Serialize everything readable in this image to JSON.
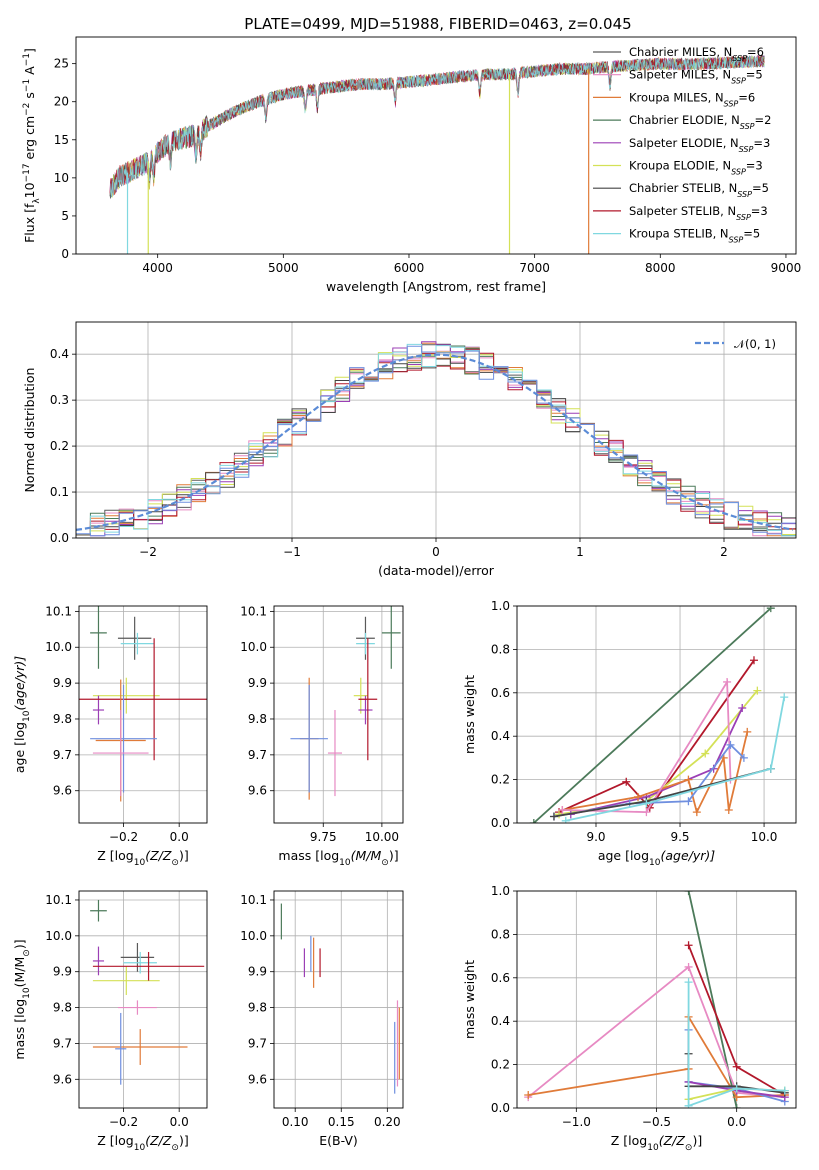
{
  "figure": {
    "title": "PLATE=0499, MJD=51988, FIBERID=0463, z=0.045"
  },
  "chart_data": [
    {
      "id": "spectrum",
      "type": "line",
      "xlabel": "wavelength [Angstrom, rest frame]",
      "ylabel": "Flux [f",
      "ylabel_sub": "λ",
      "ylabel_rest": "10",
      "ylabel_sup1": "−17",
      "ylabel_tail": " erg cm",
      "ylabel_sup2": "−2",
      "ylabel_s": " s",
      "ylabel_sup3": "−1",
      "ylabel_A": " A",
      "ylabel_sup4": "−1",
      "ylabel_end": "]",
      "xlim": [
        3350,
        9080
      ],
      "ylim": [
        0,
        28.5
      ],
      "xticks": [
        "4000",
        "5000",
        "6000",
        "7000",
        "8000",
        "9000"
      ],
      "xtick_values": [
        4000,
        5000,
        6000,
        7000,
        8000,
        9000
      ],
      "yticks": [
        "0",
        "5",
        "10",
        "15",
        "20",
        "25"
      ],
      "ytick_values": [
        0,
        5,
        10,
        15,
        20,
        25
      ],
      "grid": false,
      "legend_position": "right",
      "legend": [
        {
          "label": "Chabrier MILES, N",
          "sub": "SSP",
          "tail": "=6",
          "color": "#5a5a5a"
        },
        {
          "label": "Salpeter MILES, N",
          "sub": "SSP",
          "tail": "=5",
          "color": "#e78ac3"
        },
        {
          "label": "Kroupa MILES, N",
          "sub": "SSP",
          "tail": "=6",
          "color": "#e07b39"
        },
        {
          "label": "Chabrier ELODIE, N",
          "sub": "SSP",
          "tail": "=2",
          "color": "#4c7a5a"
        },
        {
          "label": "Salpeter ELODIE, N",
          "sub": "SSP",
          "tail": "=3",
          "color": "#9b3fb5"
        },
        {
          "label": "Kroupa ELODIE, N",
          "sub": "SSP",
          "tail": "=3",
          "color": "#d4e157"
        },
        {
          "label": "Chabrier STELIB, N",
          "sub": "SSP",
          "tail": "=5",
          "color": "#444444"
        },
        {
          "label": "Salpeter STELIB, N",
          "sub": "SSP",
          "tail": "=3",
          "color": "#b2182b"
        },
        {
          "label": "Kroupa STELIB, N",
          "sub": "SSP",
          "tail": "=5",
          "color": "#80d8e0"
        }
      ],
      "continuum": {
        "x": [
          3620,
          3700,
          3800,
          3900,
          4000,
          4100,
          4200,
          4300,
          4400,
          4500,
          4600,
          4800,
          5000,
          5200,
          5400,
          5600,
          5800,
          6000,
          6200,
          6400,
          6600,
          6800,
          7000,
          7200,
          7400,
          7600,
          7800,
          8000,
          8200,
          8400,
          8600,
          8800
        ],
        "y": [
          8.5,
          10.2,
          11.0,
          11.8,
          13.3,
          14.8,
          15.2,
          15.6,
          16.8,
          17.7,
          18.6,
          20.0,
          21.0,
          21.5,
          21.9,
          22.3,
          22.3,
          22.6,
          22.9,
          23.3,
          23.6,
          23.6,
          24.0,
          24.3,
          24.3,
          24.6,
          24.8,
          25.0,
          24.9,
          25.0,
          25.2,
          25.3
        ]
      },
      "drops": [
        {
          "x": 3760,
          "y": 0,
          "color": "#80d8e0"
        },
        {
          "x": 3925,
          "y": 0,
          "color": "#d4e157"
        },
        {
          "x": 6800,
          "y": 0,
          "color": "#d4e157"
        },
        {
          "x": 7430,
          "y": 0,
          "color": "#e07b39"
        }
      ]
    },
    {
      "id": "residuals",
      "type": "step",
      "xlabel": "(data-model)/error",
      "ylabel": "Normed distribution",
      "xlim": [
        -2.5,
        2.5
      ],
      "ylim": [
        0,
        0.47
      ],
      "xticks": [
        "−2",
        "−1",
        "0",
        "1",
        "2"
      ],
      "xtick_values": [
        -2,
        -1,
        0,
        1,
        2
      ],
      "yticks": [
        "0.0",
        "0.1",
        "0.2",
        "0.3",
        "0.4"
      ],
      "ytick_values": [
        0,
        0.1,
        0.2,
        0.3,
        0.4
      ],
      "grid": true,
      "legend_position": "top-right",
      "legend": [
        {
          "label": "𝒩(0, 1)",
          "color": "#5b8bd6",
          "dash": true
        }
      ],
      "bin_width": 0.1,
      "series_colors": [
        "#5a5a5a",
        "#e78ac3",
        "#e07b39",
        "#4c7a5a",
        "#9b3fb5",
        "#d4e157",
        "#444444",
        "#b2182b",
        "#80d8e0",
        "#6f8fdf"
      ]
    },
    {
      "id": "age-vs-Z",
      "type": "errorbar",
      "xlabel": "Z [log",
      "xlabel_sub": "10",
      "xlabel_tail": "(Z/Z",
      "xlabel_sun": "⊙",
      "xlabel_end": ")]",
      "ylabel": "age  [log",
      "ylabel_sub": "10",
      "ylabel_tail": "(age/yr)]",
      "xlim": [
        -0.36,
        0.1
      ],
      "ylim": [
        9.51,
        10.115
      ],
      "xticks": [
        "−0.2",
        "0.0"
      ],
      "xtick_values": [
        -0.2,
        0.0
      ],
      "yticks": [
        "9.6",
        "9.7",
        "9.8",
        "9.9",
        "10.0",
        "10.1"
      ],
      "ytick_values": [
        9.6,
        9.7,
        9.8,
        9.9,
        10.0,
        10.1
      ],
      "grid": true,
      "points": [
        {
          "x": -0.29,
          "y": 10.04,
          "xerr": 0.03,
          "yerr": 0.1,
          "color": "#4c7a5a"
        },
        {
          "x": -0.16,
          "y": 10.025,
          "xerr": 0.06,
          "yerr": 0.06,
          "color": "#5a5a5a"
        },
        {
          "x": -0.15,
          "y": 10.01,
          "xerr": 0.06,
          "yerr": 0.03,
          "color": "#80d8e0"
        },
        {
          "x": -0.19,
          "y": 9.865,
          "xerr": 0.12,
          "yerr": 0.05,
          "color": "#d4e157"
        },
        {
          "x": -0.29,
          "y": 9.825,
          "xerr": 0.02,
          "yerr": 0.04,
          "color": "#9b3fb5"
        },
        {
          "x": -0.09,
          "y": 9.855,
          "xerr": 0.31,
          "yerr": 0.17,
          "color": "#b2182b"
        },
        {
          "x": -0.21,
          "y": 9.74,
          "xerr": 0.09,
          "yerr": 0.17,
          "color": "#e07b39"
        },
        {
          "x": -0.2,
          "y": 9.745,
          "xerr": 0.12,
          "yerr": 0.15,
          "color": "#6f8fdf"
        },
        {
          "x": -0.21,
          "y": 9.705,
          "xerr": 0.1,
          "yerr": 0.12,
          "color": "#e78ac3"
        }
      ]
    },
    {
      "id": "age-vs-mass",
      "type": "errorbar",
      "xlabel": "mass [log",
      "xlabel_sub": "10",
      "xlabel_tail": "(M/M",
      "xlabel_sun": "⊙",
      "xlabel_end": ")]",
      "xlim": [
        9.54,
        10.09
      ],
      "ylim": [
        9.51,
        10.115
      ],
      "xticks": [
        "9.75",
        "10.00"
      ],
      "xtick_values": [
        9.75,
        10.0
      ],
      "yticks": [
        "9.6",
        "9.7",
        "9.8",
        "9.9",
        "10.0",
        "10.1"
      ],
      "ytick_values": [
        9.6,
        9.7,
        9.8,
        9.9,
        10.0,
        10.1
      ],
      "grid": true,
      "points": [
        {
          "x": 10.04,
          "y": 10.04,
          "xerr": 0.04,
          "yerr": 0.1,
          "color": "#4c7a5a"
        },
        {
          "x": 9.93,
          "y": 10.025,
          "xerr": 0.04,
          "yerr": 0.06,
          "color": "#5a5a5a"
        },
        {
          "x": 9.93,
          "y": 10.01,
          "xerr": 0.04,
          "yerr": 0.03,
          "color": "#80d8e0"
        },
        {
          "x": 9.91,
          "y": 9.865,
          "xerr": 0.03,
          "yerr": 0.05,
          "color": "#d4e157"
        },
        {
          "x": 9.93,
          "y": 9.825,
          "xerr": 0.03,
          "yerr": 0.04,
          "color": "#9b3fb5"
        },
        {
          "x": 9.94,
          "y": 9.855,
          "xerr": 0.04,
          "yerr": 0.17,
          "color": "#b2182b"
        },
        {
          "x": 9.69,
          "y": 9.745,
          "xerr": 0.04,
          "yerr": 0.17,
          "color": "#e07b39"
        },
        {
          "x": 9.69,
          "y": 9.745,
          "xerr": 0.08,
          "yerr": 0.15,
          "color": "#6f8fdf"
        },
        {
          "x": 9.8,
          "y": 9.705,
          "xerr": 0.03,
          "yerr": 0.12,
          "color": "#e78ac3"
        }
      ]
    },
    {
      "id": "mass-weight-vs-age",
      "type": "line",
      "xlabel": "age  [log",
      "xlabel_sub": "10",
      "xlabel_tail": "(age/yr)]",
      "ylabel": "mass weight",
      "xlim": [
        8.53,
        10.19
      ],
      "ylim": [
        0,
        1
      ],
      "xticks": [
        "9.0",
        "9.5",
        "10.0"
      ],
      "xtick_values": [
        9.0,
        9.5,
        10.0
      ],
      "yticks": [
        "0.0",
        "0.2",
        "0.4",
        "0.6",
        "0.8",
        "1.0"
      ],
      "ytick_values": [
        0,
        0.2,
        0.4,
        0.6,
        0.8,
        1.0
      ],
      "grid": true,
      "series": [
        {
          "color": "#4c7a5a",
          "x": [
            8.63,
            10.04
          ],
          "y": [
            0.0,
            0.99
          ]
        },
        {
          "color": "#b2182b",
          "x": [
            8.78,
            9.18,
            9.32,
            9.94
          ],
          "y": [
            0.05,
            0.19,
            0.07,
            0.75
          ]
        },
        {
          "color": "#d4e157",
          "x": [
            8.78,
            9.3,
            9.65,
            9.96
          ],
          "y": [
            0.04,
            0.1,
            0.32,
            0.61
          ]
        },
        {
          "color": "#9b3fb5",
          "x": [
            8.85,
            9.3,
            9.7,
            9.87
          ],
          "y": [
            0.04,
            0.12,
            0.25,
            0.53
          ]
        },
        {
          "color": "#e07b39",
          "x": [
            8.8,
            9.25,
            9.55,
            9.6,
            9.76,
            9.79,
            9.9
          ],
          "y": [
            0.06,
            0.12,
            0.2,
            0.05,
            0.3,
            0.06,
            0.42
          ]
        },
        {
          "color": "#e78ac3",
          "x": [
            8.8,
            9.3,
            9.78,
            9.8
          ],
          "y": [
            0.06,
            0.05,
            0.65,
            0.2
          ]
        },
        {
          "color": "#6f8fdf",
          "x": [
            8.75,
            9.2,
            9.55,
            9.8,
            9.88
          ],
          "y": [
            0.03,
            0.09,
            0.1,
            0.36,
            0.3
          ]
        },
        {
          "color": "#444444",
          "x": [
            8.75,
            9.3,
            10.04
          ],
          "y": [
            0.03,
            0.1,
            0.25
          ]
        },
        {
          "color": "#80d8e0",
          "x": [
            8.82,
            9.3,
            10.04,
            10.12
          ],
          "y": [
            0.01,
            0.09,
            0.25,
            0.58
          ]
        }
      ]
    },
    {
      "id": "mass-vs-Z",
      "type": "errorbar",
      "xlabel": "Z [log",
      "xlabel_sub": "10",
      "xlabel_tail": "(Z/Z",
      "xlabel_sun": "⊙",
      "xlabel_end": ")]",
      "ylabel": "mass [log",
      "ylabel_sub": "10",
      "ylabel_tail": "(M/M",
      "ylabel_sun": "⊙",
      "ylabel_end": ")]",
      "xlim": [
        -0.36,
        0.1
      ],
      "ylim": [
        9.52,
        10.125
      ],
      "xticks": [
        "−0.2",
        "0.0"
      ],
      "xtick_values": [
        -0.2,
        0.0
      ],
      "yticks": [
        "9.6",
        "9.7",
        "9.8",
        "9.9",
        "10.0",
        "10.1"
      ],
      "ytick_values": [
        9.6,
        9.7,
        9.8,
        9.9,
        10.0,
        10.1
      ],
      "grid": true,
      "points": [
        {
          "x": -0.29,
          "y": 10.07,
          "xerr": 0.03,
          "yerr": 0.03,
          "color": "#4c7a5a"
        },
        {
          "x": -0.15,
          "y": 9.94,
          "xerr": 0.06,
          "yerr": 0.04,
          "color": "#5a5a5a"
        },
        {
          "x": -0.14,
          "y": 9.925,
          "xerr": 0.06,
          "yerr": 0.03,
          "color": "#80d8e0"
        },
        {
          "x": -0.19,
          "y": 9.875,
          "xerr": 0.12,
          "yerr": 0.04,
          "color": "#d4e157"
        },
        {
          "x": -0.29,
          "y": 9.93,
          "xerr": 0.02,
          "yerr": 0.04,
          "color": "#9b3fb5"
        },
        {
          "x": -0.11,
          "y": 9.915,
          "xerr": 0.2,
          "yerr": 0.04,
          "color": "#b2182b"
        },
        {
          "x": -0.14,
          "y": 9.69,
          "xerr": 0.17,
          "yerr": 0.05,
          "color": "#e07b39"
        },
        {
          "x": -0.21,
          "y": 9.685,
          "xerr": 0.02,
          "yerr": 0.1,
          "color": "#6f8fdf"
        },
        {
          "x": -0.15,
          "y": 9.8,
          "xerr": 0.07,
          "yerr": 0.02,
          "color": "#e78ac3"
        }
      ]
    },
    {
      "id": "mass-vs-EBV",
      "type": "errorbar",
      "xlabel": "E(B-V)",
      "xlim": [
        0.077,
        0.217
      ],
      "ylim": [
        9.52,
        10.125
      ],
      "xticks": [
        "0.10",
        "0.15",
        "0.20"
      ],
      "xtick_values": [
        0.1,
        0.15,
        0.2
      ],
      "yticks": [
        "9.6",
        "9.7",
        "9.8",
        "9.9",
        "10.0",
        "10.1"
      ],
      "ytick_values": [
        9.6,
        9.7,
        9.8,
        9.9,
        10.0,
        10.1
      ],
      "grid": true,
      "points": [
        {
          "x": 0.085,
          "y": 10.04,
          "xerr": 0,
          "yerr": 0.05,
          "color": "#4c7a5a"
        },
        {
          "x": 0.11,
          "y": 9.925,
          "xerr": 0,
          "yerr": 0.04,
          "color": "#9b3fb5"
        },
        {
          "x": 0.117,
          "y": 9.95,
          "xerr": 0,
          "yerr": 0.05,
          "color": "#6f8fdf"
        },
        {
          "x": 0.12,
          "y": 9.925,
          "xerr": 0,
          "yerr": 0.07,
          "color": "#e07b39"
        },
        {
          "x": 0.127,
          "y": 9.925,
          "xerr": 0,
          "yerr": 0.04,
          "color": "#b2182b"
        },
        {
          "x": 0.208,
          "y": 9.66,
          "xerr": 0,
          "yerr": 0.1,
          "color": "#6f8fdf"
        },
        {
          "x": 0.211,
          "y": 9.7,
          "xerr": 0,
          "yerr": 0.12,
          "color": "#e78ac3"
        },
        {
          "x": 0.213,
          "y": 9.7,
          "xerr": 0,
          "yerr": 0.1,
          "color": "#e07b39"
        }
      ]
    },
    {
      "id": "mass-weight-vs-Z",
      "type": "line",
      "xlabel": "Z [log",
      "xlabel_sub": "10",
      "xlabel_tail": "(Z/Z",
      "xlabel_sun": "⊙",
      "xlabel_end": ")]",
      "ylabel": "mass weight",
      "xlim": [
        -1.37,
        0.37
      ],
      "ylim": [
        0,
        1
      ],
      "xticks": [
        "−1.0",
        "−0.5",
        "0.0"
      ],
      "xtick_values": [
        -1.0,
        -0.5,
        0.0
      ],
      "yticks": [
        "0.0",
        "0.2",
        "0.4",
        "0.6",
        "0.8",
        "1.0"
      ],
      "ytick_values": [
        0,
        0.2,
        0.4,
        0.6,
        0.8,
        1.0
      ],
      "grid": true,
      "series": [
        {
          "color": "#4c7a5a",
          "x": [
            -0.3,
            0.0
          ],
          "y": [
            1.0,
            0.0
          ]
        },
        {
          "color": "#b2182b",
          "x": [
            -0.3,
            0.0,
            0.3
          ],
          "y": [
            0.75,
            0.19,
            0.06
          ]
        },
        {
          "color": "#e78ac3",
          "x": [
            -1.3,
            -0.3,
            0.0,
            0.3
          ],
          "y": [
            0.05,
            0.65,
            0.07,
            0.05
          ]
        },
        {
          "color": "#e07b39",
          "x": [
            -1.3,
            -0.3,
            -0.3,
            0.0,
            0.3
          ],
          "y": [
            0.06,
            0.18,
            0.42,
            0.05,
            0.06
          ]
        },
        {
          "color": "#6f8fdf",
          "x": [
            -0.3,
            -0.3,
            0.0,
            0.3
          ],
          "y": [
            0.36,
            0.12,
            0.09,
            0.03
          ]
        },
        {
          "color": "#9b3fb5",
          "x": [
            -0.3,
            0.0,
            0.3
          ],
          "y": [
            0.12,
            0.08,
            0.05
          ]
        },
        {
          "color": "#d4e157",
          "x": [
            -0.3,
            0.0,
            0.3
          ],
          "y": [
            0.04,
            0.09,
            0.08
          ]
        },
        {
          "color": "#444444",
          "x": [
            -0.3,
            -0.3,
            0.0,
            0.3
          ],
          "y": [
            0.25,
            0.1,
            0.1,
            0.07
          ]
        },
        {
          "color": "#80d8e0",
          "x": [
            -0.3,
            -0.3,
            0.0,
            0.3
          ],
          "y": [
            0.58,
            0.01,
            0.09,
            0.08
          ]
        }
      ]
    }
  ]
}
